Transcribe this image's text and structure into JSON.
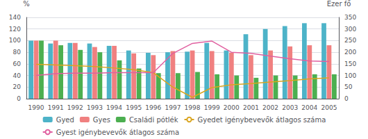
{
  "chart_data": {
    "type": "bar",
    "categories": [
      "1990",
      "1991",
      "1992",
      "1993",
      "1994",
      "1995",
      "1996",
      "1997",
      "1998",
      "1999",
      "2000",
      "2001",
      "2002",
      "2003",
      "2004",
      "2005"
    ],
    "ylabel": "%",
    "y2label": "Ezer fő",
    "ylim": [
      0,
      140
    ],
    "yticks": [
      0,
      20,
      40,
      60,
      80,
      100,
      120,
      140
    ],
    "y2lim": [
      0,
      350
    ],
    "y2ticks": [
      0,
      50,
      100,
      150,
      200,
      250,
      300,
      350
    ],
    "grid": true,
    "legend": "bottom",
    "series": [
      {
        "name": "Gyed",
        "type": "bar",
        "color": "#4DB3C8",
        "values": [
          100,
          95,
          96,
          95,
          91,
          83,
          79,
          80,
          81,
          96,
          83,
          111,
          120,
          125,
          130,
          130
        ]
      },
      {
        "name": "Gyes",
        "type": "bar",
        "color": "#F08080",
        "values": [
          100,
          100,
          96,
          89,
          91,
          78,
          75,
          82,
          83,
          82,
          79,
          75,
          83,
          90,
          92,
          92
        ]
      },
      {
        "name": "Családi pótlék",
        "type": "bar",
        "color": "#4CAF50",
        "values": [
          100,
          92,
          84,
          80,
          66,
          52,
          44,
          44,
          46,
          42,
          40,
          36,
          40,
          40,
          42,
          42
        ]
      },
      {
        "name": "Gyedet igénybevevők átlagos száma",
        "type": "line",
        "axis": "y2",
        "color": "#DAA520",
        "values": [
          148,
          145,
          142,
          138,
          132,
          125,
          112,
          50,
          6,
          48,
          60,
          65,
          72,
          78,
          85,
          90
        ]
      },
      {
        "name": "Gyest igénybevevők átlagos száma",
        "type": "line",
        "axis": "y2",
        "color": "#E060A0",
        "values": [
          100,
          108,
          110,
          110,
          112,
          112,
          112,
          195,
          238,
          248,
          200,
          195,
          183,
          172,
          162,
          160
        ]
      }
    ]
  }
}
